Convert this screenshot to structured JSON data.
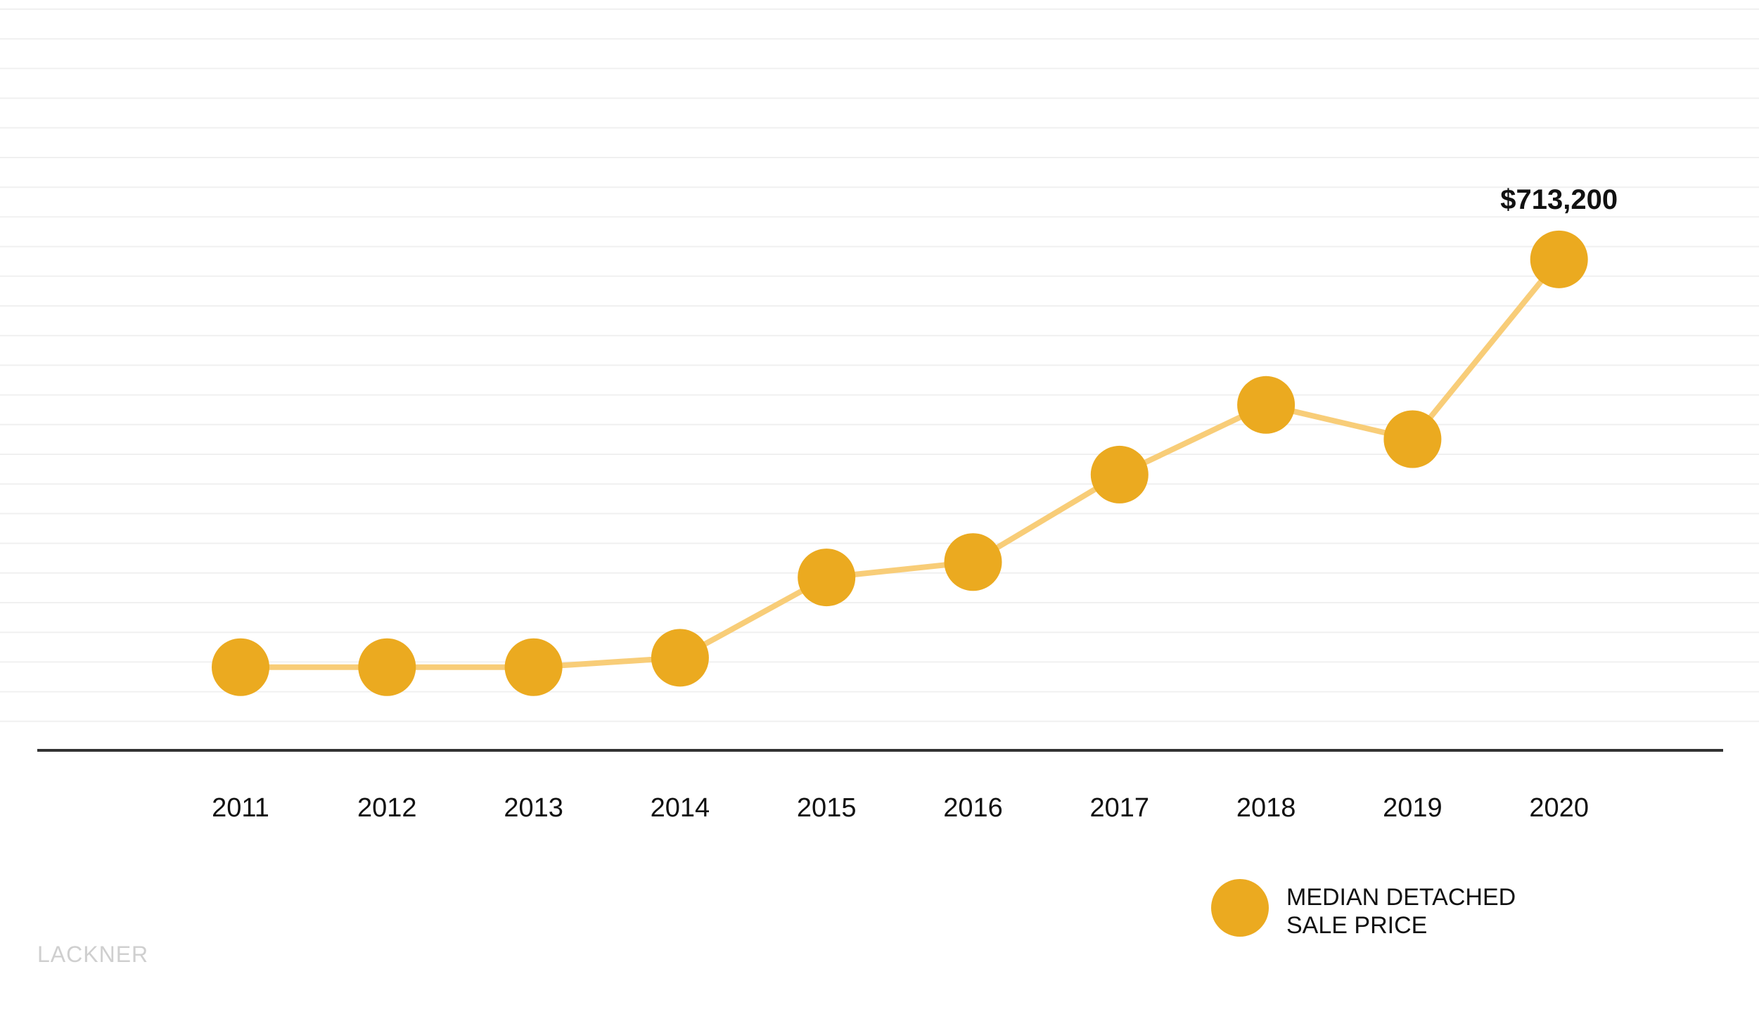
{
  "chart_data": {
    "type": "line",
    "categories": [
      "2011",
      "2012",
      "2013",
      "2014",
      "2015",
      "2016",
      "2017",
      "2018",
      "2019",
      "2020"
    ],
    "series": [
      {
        "name": "MEDIAN DETACHED SALE PRICE",
        "values": [
          368000,
          368000,
          368000,
          376000,
          444000,
          457000,
          531000,
          590000,
          561000,
          713200
        ]
      }
    ],
    "ylim": [
      0,
      1200000
    ],
    "annotations": [
      {
        "category": "2020",
        "text": "$713,200"
      }
    ],
    "legend": {
      "position": "bottom-right",
      "lines": [
        "MEDIAN DETACHED",
        "SALE PRICE"
      ]
    },
    "grid": true,
    "colors": {
      "marker": "#EBAA20",
      "line": "#F8CD78",
      "axis": "#333333",
      "grid": "#f0f0f0"
    }
  },
  "brand": "LACKNER"
}
